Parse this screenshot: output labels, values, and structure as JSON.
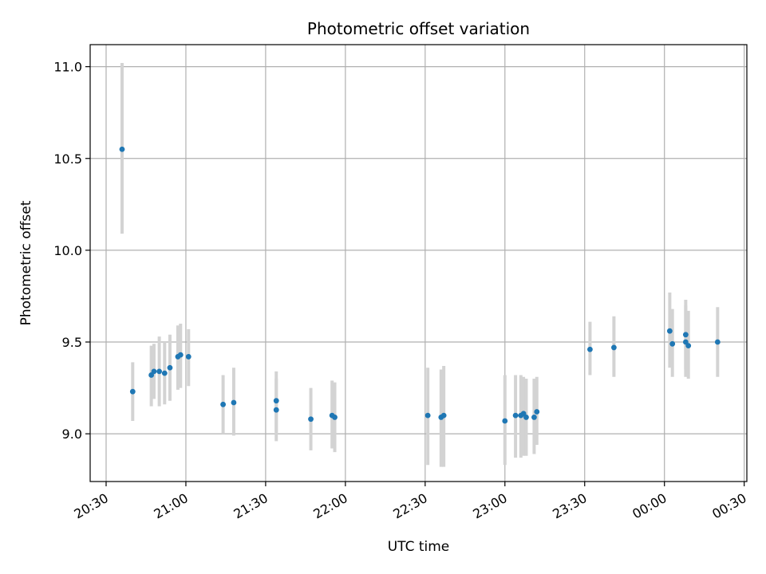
{
  "chart_data": {
    "type": "scatter",
    "title": "Photometric offset variation",
    "xlabel": "UTC time",
    "ylabel": "Photometric offset",
    "grid": true,
    "legend": "none",
    "xlim": [
      "20:24",
      "00:31"
    ],
    "ylim": [
      8.74,
      11.12
    ],
    "x_ticks": [
      "20:30",
      "21:00",
      "21:30",
      "22:00",
      "22:30",
      "23:00",
      "23:30",
      "00:00",
      "00:30"
    ],
    "y_ticks": [
      9.0,
      9.5,
      10.0,
      10.5,
      11.0
    ],
    "y_tick_labels": [
      "9.0",
      "9.5",
      "10.0",
      "10.5",
      "11.0"
    ],
    "colors": {
      "point": "#1f77b4",
      "errorbar": "#d3d3d3",
      "grid": "#b0b0b0"
    },
    "series": [
      {
        "points": [
          {
            "t": "20:36",
            "y": 10.55,
            "lo": 10.09,
            "hi": 11.02
          },
          {
            "t": "20:40",
            "y": 9.23,
            "lo": 9.07,
            "hi": 9.39
          },
          {
            "t": "20:47",
            "y": 9.32,
            "lo": 9.15,
            "hi": 9.48
          },
          {
            "t": "20:48",
            "y": 9.34,
            "lo": 9.19,
            "hi": 9.49
          },
          {
            "t": "20:50",
            "y": 9.34,
            "lo": 9.15,
            "hi": 9.53
          },
          {
            "t": "20:52",
            "y": 9.33,
            "lo": 9.16,
            "hi": 9.5
          },
          {
            "t": "20:54",
            "y": 9.36,
            "lo": 9.18,
            "hi": 9.54
          },
          {
            "t": "20:57",
            "y": 9.42,
            "lo": 9.24,
            "hi": 9.59
          },
          {
            "t": "20:58",
            "y": 9.43,
            "lo": 9.25,
            "hi": 9.6
          },
          {
            "t": "21:01",
            "y": 9.42,
            "lo": 9.26,
            "hi": 9.57
          },
          {
            "t": "21:14",
            "y": 9.16,
            "lo": 9.0,
            "hi": 9.32
          },
          {
            "t": "21:18",
            "y": 9.17,
            "lo": 8.99,
            "hi": 9.36
          },
          {
            "t": "21:34",
            "y": 9.13,
            "lo": 8.96,
            "hi": 9.3
          },
          {
            "t": "21:34",
            "y": 9.18,
            "lo": 9.01,
            "hi": 9.34
          },
          {
            "t": "21:47",
            "y": 9.08,
            "lo": 8.91,
            "hi": 9.25
          },
          {
            "t": "21:55",
            "y": 9.1,
            "lo": 8.92,
            "hi": 9.29
          },
          {
            "t": "21:56",
            "y": 9.09,
            "lo": 8.9,
            "hi": 9.28
          },
          {
            "t": "22:31",
            "y": 9.1,
            "lo": 8.83,
            "hi": 9.36
          },
          {
            "t": "22:36",
            "y": 9.09,
            "lo": 8.82,
            "hi": 9.35
          },
          {
            "t": "22:37",
            "y": 9.1,
            "lo": 8.82,
            "hi": 9.37
          },
          {
            "t": "23:00",
            "y": 9.07,
            "lo": 8.83,
            "hi": 9.32
          },
          {
            "t": "23:04",
            "y": 9.1,
            "lo": 8.87,
            "hi": 9.32
          },
          {
            "t": "23:06",
            "y": 9.1,
            "lo": 8.87,
            "hi": 9.32
          },
          {
            "t": "23:07",
            "y": 9.11,
            "lo": 8.88,
            "hi": 9.31
          },
          {
            "t": "23:08",
            "y": 9.09,
            "lo": 8.88,
            "hi": 9.3
          },
          {
            "t": "23:11",
            "y": 9.09,
            "lo": 8.89,
            "hi": 9.3
          },
          {
            "t": "23:12",
            "y": 9.12,
            "lo": 8.94,
            "hi": 9.31
          },
          {
            "t": "23:32",
            "y": 9.46,
            "lo": 9.32,
            "hi": 9.61
          },
          {
            "t": "23:41",
            "y": 9.47,
            "lo": 9.31,
            "hi": 9.64
          },
          {
            "t": "00:02",
            "y": 9.56,
            "lo": 9.36,
            "hi": 9.77
          },
          {
            "t": "00:03",
            "y": 9.49,
            "lo": 9.31,
            "hi": 9.68
          },
          {
            "t": "00:08",
            "y": 9.54,
            "lo": 9.35,
            "hi": 9.73
          },
          {
            "t": "00:08",
            "y": 9.5,
            "lo": 9.31,
            "hi": 9.7
          },
          {
            "t": "00:09",
            "y": 9.48,
            "lo": 9.3,
            "hi": 9.67
          },
          {
            "t": "00:20",
            "y": 9.5,
            "lo": 9.31,
            "hi": 9.69
          }
        ]
      }
    ]
  }
}
